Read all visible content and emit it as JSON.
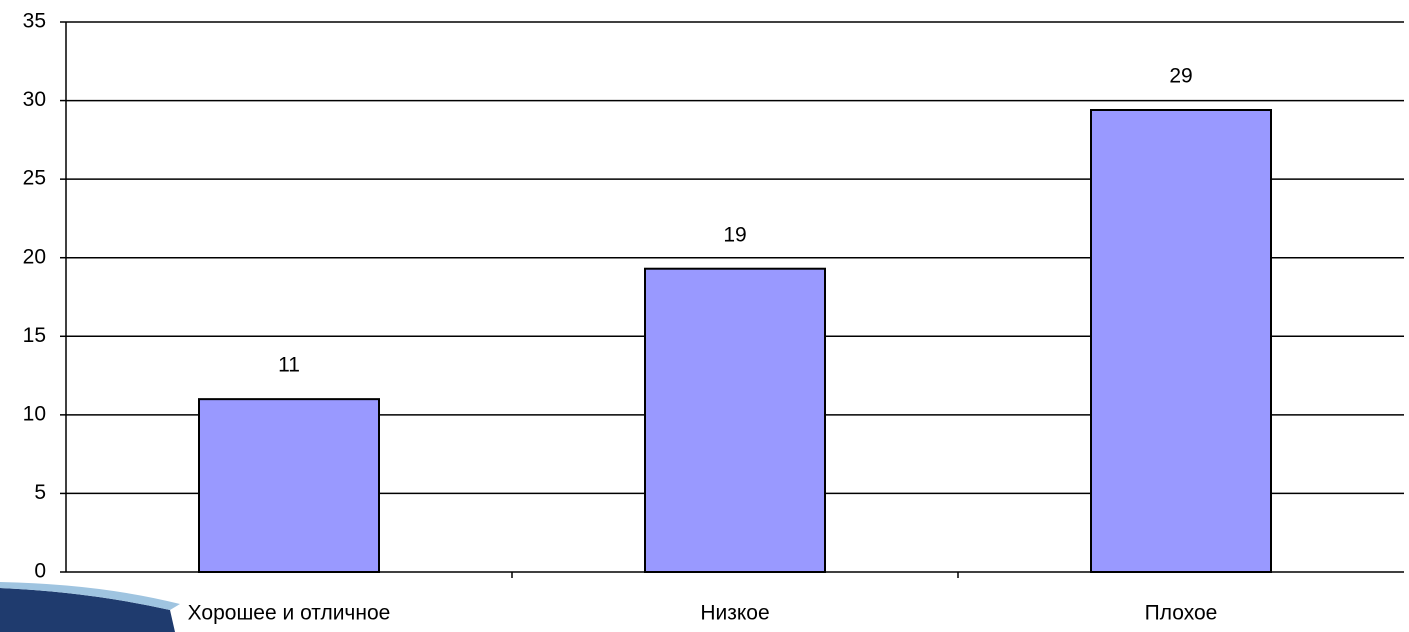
{
  "chart_data": {
    "type": "bar",
    "categories": [
      "Хорошее и отличное",
      "Низкое",
      "Плохое"
    ],
    "values": [
      11,
      19.3,
      29.4
    ],
    "value_labels": [
      "11",
      "19",
      "29"
    ],
    "color": "#9999ff",
    "ylim": [
      0,
      35
    ],
    "yticks": [
      0,
      5,
      10,
      15,
      20,
      25,
      30,
      35
    ],
    "grid": true
  }
}
